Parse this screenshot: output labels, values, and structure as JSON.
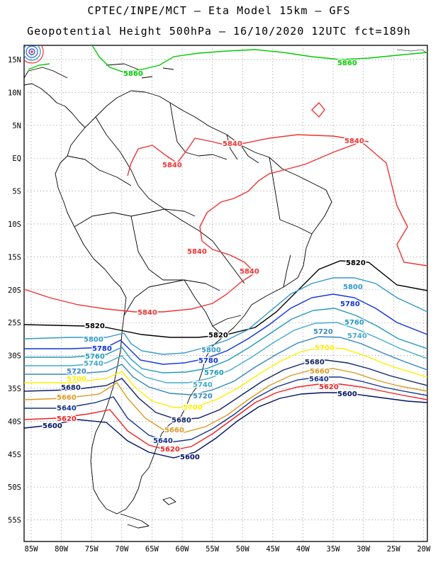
{
  "header": {
    "line1": "CPTEC/INPE/MCT –  Eta Model 15km – GFS",
    "line2": "Geopotential Height 500hPa – 16/10/2020 12UTC fct=189h"
  },
  "axes": {
    "lat_labels": [
      "15N",
      "10N",
      "5N",
      "EQ",
      "5S",
      "10S",
      "15S",
      "20S",
      "25S",
      "30S",
      "35S",
      "40S",
      "45S",
      "50S",
      "55S"
    ],
    "lon_labels": [
      "85W",
      "80W",
      "75W",
      "70W",
      "65W",
      "60W",
      "55W",
      "50W",
      "45W",
      "40W",
      "35W",
      "30W",
      "25W",
      "20W"
    ]
  },
  "contour_colors": {
    "5860": "#00cc00",
    "5840": "#ee3333",
    "5820": "#000000",
    "5800": "#3399cc",
    "5780": "#1133dd",
    "5760": "#2299bb",
    "5740": "#44aacc",
    "5720": "#3388bb",
    "5700": "#ffee00",
    "5680": "#112266",
    "5660": "#dd9922",
    "5640": "#113388",
    "5620": "#ee2222",
    "5600": "#001166"
  },
  "contour_labels": [
    {
      "id": "l5860a",
      "text": "5860",
      "level": "5860"
    },
    {
      "id": "l5860b",
      "text": "5860",
      "level": "5860"
    },
    {
      "id": "l5840a",
      "text": "5840",
      "level": "5840"
    },
    {
      "id": "l5840b",
      "text": "5840",
      "level": "5840"
    },
    {
      "id": "l5840c",
      "text": "5840",
      "level": "5840"
    },
    {
      "id": "l5840d",
      "text": "5840",
      "level": "5840"
    },
    {
      "id": "l5840e",
      "text": "5840",
      "level": "5840"
    },
    {
      "id": "l5840f",
      "text": "5840",
      "level": "5840"
    },
    {
      "id": "l5820a",
      "text": "5820",
      "level": "5820"
    },
    {
      "id": "l5820b",
      "text": "5820",
      "level": "5820"
    },
    {
      "id": "l5820c",
      "text": "5820",
      "level": "5820"
    },
    {
      "id": "l5800a",
      "text": "5800",
      "level": "5800"
    },
    {
      "id": "l5800b",
      "text": "5800",
      "level": "5800"
    },
    {
      "id": "l5800c",
      "text": "5800",
      "level": "5800"
    },
    {
      "id": "l5780a",
      "text": "5780",
      "level": "5780"
    },
    {
      "id": "l5780b",
      "text": "5780",
      "level": "5780"
    },
    {
      "id": "l5780c",
      "text": "5780",
      "level": "5780"
    },
    {
      "id": "l5760a",
      "text": "5760",
      "level": "5760"
    },
    {
      "id": "l5760b",
      "text": "5760",
      "level": "5760"
    },
    {
      "id": "l5760c",
      "text": "5760",
      "level": "5760"
    },
    {
      "id": "l5740a",
      "text": "5740",
      "level": "5740"
    },
    {
      "id": "l5740b",
      "text": "5740",
      "level": "5740"
    },
    {
      "id": "l5740c",
      "text": "5740",
      "level": "5740"
    },
    {
      "id": "l5720a",
      "text": "5720",
      "level": "5720"
    },
    {
      "id": "l5720b",
      "text": "5720",
      "level": "5720"
    },
    {
      "id": "l5720c",
      "text": "5720",
      "level": "5720"
    },
    {
      "id": "l5700a",
      "text": "5700",
      "level": "5700"
    },
    {
      "id": "l5700b",
      "text": "5700",
      "level": "5700"
    },
    {
      "id": "l5700c",
      "text": "5700",
      "level": "5700"
    },
    {
      "id": "l5680a",
      "text": "5680",
      "level": "5680"
    },
    {
      "id": "l5680b",
      "text": "5680",
      "level": "5680"
    },
    {
      "id": "l5680c",
      "text": "5680",
      "level": "5680"
    },
    {
      "id": "l5660a",
      "text": "5660",
      "level": "5660"
    },
    {
      "id": "l5660b",
      "text": "5660",
      "level": "5660"
    },
    {
      "id": "l5660c",
      "text": "5660",
      "level": "5660"
    },
    {
      "id": "l5640a",
      "text": "5640",
      "level": "5640"
    },
    {
      "id": "l5640b",
      "text": "5640",
      "level": "5640"
    },
    {
      "id": "l5640c",
      "text": "5640",
      "level": "5640"
    },
    {
      "id": "l5620a",
      "text": "5620",
      "level": "5620"
    },
    {
      "id": "l5620b",
      "text": "5620",
      "level": "5620"
    },
    {
      "id": "l5620c",
      "text": "5620",
      "level": "5620"
    },
    {
      "id": "l5600a",
      "text": "5600",
      "level": "5600"
    },
    {
      "id": "l5600b",
      "text": "5600",
      "level": "5600"
    },
    {
      "id": "l5600c",
      "text": "5600",
      "level": "5600"
    }
  ]
}
